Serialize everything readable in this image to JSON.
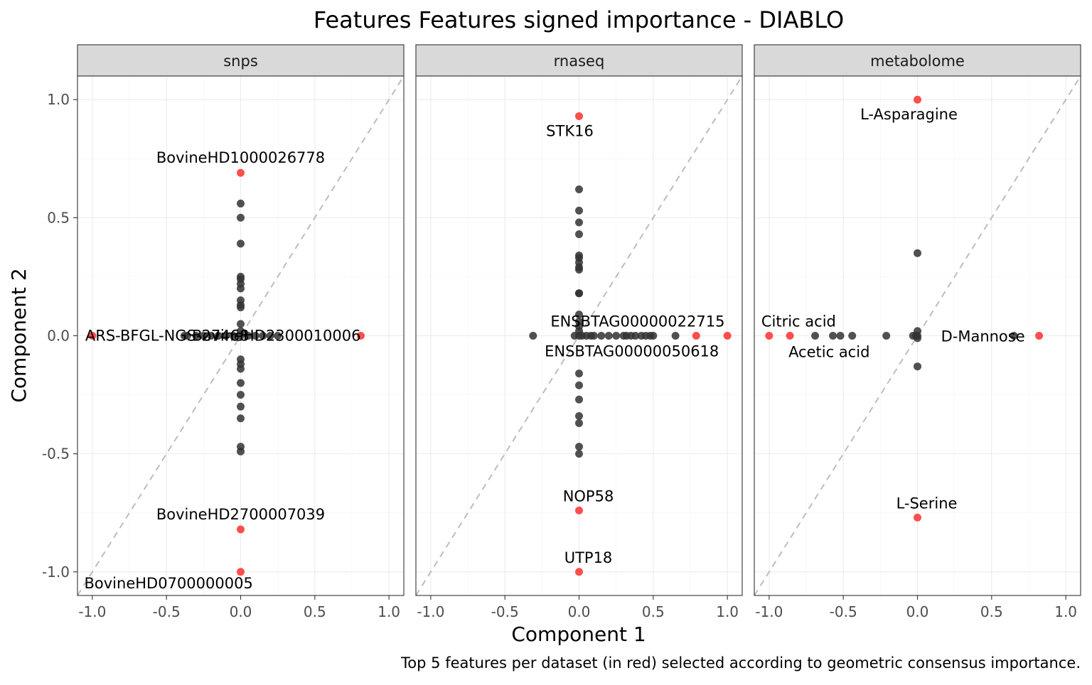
{
  "chart_data": {
    "type": "scatter",
    "title": "Features Features signed importance - DIABLO",
    "xlabel": "Component 1",
    "ylabel": "Component 2",
    "caption": "Top 5 features per dataset (in red) selected according to geometric consensus importance.",
    "xlim": [
      -1.1,
      1.1
    ],
    "ylim": [
      -1.1,
      1.1
    ],
    "x_ticks": [
      -1.0,
      -0.5,
      0.0,
      0.5,
      1.0
    ],
    "x_tick_labels": [
      "-1.0",
      "-0.5",
      "0.0",
      "0.5",
      "1.0"
    ],
    "y_ticks": [
      -1.0,
      -0.5,
      0.0,
      0.5,
      1.0
    ],
    "y_tick_labels": [
      "-1.0",
      "-0.5",
      "0.0",
      "0.5",
      "1.0"
    ],
    "grid": true,
    "diagonal_reference": "dashed y = x",
    "colors": {
      "highlight": "#ff3b3b",
      "other": "#333333",
      "strip": "#d9d9d9",
      "diagonal": "#bdbdbd"
    },
    "panels": [
      {
        "name": "snps",
        "highlight_points": [
          {
            "x": 0.0,
            "y": 0.69,
            "label": "BovineHD1000026778"
          },
          {
            "x": -1.0,
            "y": 0.0,
            "label": "ARS-BFGL-NGS-27468"
          },
          {
            "x": 0.81,
            "y": 0.0,
            "label": "BovineHD2300010006"
          },
          {
            "x": 0.0,
            "y": -0.82,
            "label": "BovineHD2700007039"
          },
          {
            "x": 0.0,
            "y": -1.0,
            "label": "BovineHD0700000005"
          }
        ],
        "other_points": [
          [
            0,
            0.56
          ],
          [
            0,
            0.5
          ],
          [
            0,
            0.39
          ],
          [
            0,
            0.25
          ],
          [
            0,
            0.24
          ],
          [
            0,
            0.22
          ],
          [
            0,
            0.2
          ],
          [
            0,
            0.15
          ],
          [
            0,
            0.13
          ],
          [
            0,
            0.12
          ],
          [
            0,
            0.05
          ],
          [
            0,
            0.02
          ],
          [
            0,
            -0.1
          ],
          [
            0,
            -0.12
          ],
          [
            0,
            -0.14
          ],
          [
            0,
            -0.2
          ],
          [
            0,
            -0.25
          ],
          [
            0,
            -0.3
          ],
          [
            0,
            -0.35
          ],
          [
            0,
            -0.47
          ],
          [
            0,
            -0.49
          ],
          [
            -0.38,
            0
          ],
          [
            -0.36,
            0
          ],
          [
            -0.3,
            0
          ],
          [
            -0.25,
            0
          ],
          [
            -0.2,
            0
          ],
          [
            -0.15,
            0
          ],
          [
            -0.1,
            0
          ],
          [
            -0.05,
            0
          ],
          [
            0.05,
            0
          ],
          [
            0.1,
            0
          ],
          [
            0.15,
            0
          ],
          [
            0.2,
            0
          ],
          [
            0.25,
            0
          ],
          [
            0.0,
            0
          ]
        ]
      },
      {
        "name": "rnaseq",
        "highlight_points": [
          {
            "x": 0.0,
            "y": 0.93,
            "label": "STK16"
          },
          {
            "x": 0.79,
            "y": 0.0,
            "label": "ENSBTAG00000022715"
          },
          {
            "x": 1.0,
            "y": 0.0,
            "label": "ENSBTAG00000050618"
          },
          {
            "x": 0.0,
            "y": -0.74,
            "label": "NOP58"
          },
          {
            "x": 0.0,
            "y": -1.0,
            "label": "UTP18"
          }
        ],
        "other_points": [
          [
            0,
            0.62
          ],
          [
            0,
            0.53
          ],
          [
            0,
            0.48
          ],
          [
            0,
            0.43
          ],
          [
            0,
            0.34
          ],
          [
            0,
            0.33
          ],
          [
            0,
            0.31
          ],
          [
            0,
            0.29
          ],
          [
            0,
            0.28
          ],
          [
            0,
            0.18
          ],
          [
            0,
            0.18
          ],
          [
            0,
            0.09
          ],
          [
            0,
            0.06
          ],
          [
            0,
            0.04
          ],
          [
            0,
            0.02
          ],
          [
            0,
            -0.16
          ],
          [
            0,
            -0.21
          ],
          [
            0,
            -0.27
          ],
          [
            0,
            -0.34
          ],
          [
            0,
            -0.37
          ],
          [
            0,
            -0.47
          ],
          [
            0,
            -0.5
          ],
          [
            -0.31,
            0
          ],
          [
            -0.03,
            0
          ],
          [
            0.02,
            0
          ],
          [
            0.05,
            0
          ],
          [
            0.08,
            0
          ],
          [
            0.1,
            0
          ],
          [
            0.15,
            0
          ],
          [
            0.2,
            0
          ],
          [
            0.25,
            0
          ],
          [
            0.3,
            0
          ],
          [
            0.32,
            0
          ],
          [
            0.35,
            0
          ],
          [
            0.38,
            0
          ],
          [
            0.42,
            0
          ],
          [
            0.45,
            0
          ],
          [
            0.48,
            0
          ],
          [
            0.5,
            0
          ],
          [
            0.65,
            0
          ],
          [
            0.0,
            0
          ]
        ]
      },
      {
        "name": "metabolome",
        "highlight_points": [
          {
            "x": 0.0,
            "y": 1.0,
            "label": "L-Asparagine"
          },
          {
            "x": -1.0,
            "y": 0.0,
            "label": "Citric acid"
          },
          {
            "x": -0.86,
            "y": 0.0,
            "label": "Acetic acid"
          },
          {
            "x": 0.82,
            "y": 0.0,
            "label": "D-Mannose"
          },
          {
            "x": 0.0,
            "y": -0.77,
            "label": "L-Serine"
          }
        ],
        "other_points": [
          [
            0,
            0.35
          ],
          [
            0,
            0.02
          ],
          [
            0,
            0.0
          ],
          [
            0,
            -0.01
          ],
          [
            0,
            -0.13
          ],
          [
            -0.69,
            0
          ],
          [
            -0.57,
            0
          ],
          [
            -0.52,
            0
          ],
          [
            -0.44,
            0
          ],
          [
            -0.21,
            0
          ],
          [
            -0.03,
            0
          ],
          [
            -0.01,
            0
          ],
          [
            0.65,
            0
          ]
        ]
      }
    ]
  }
}
